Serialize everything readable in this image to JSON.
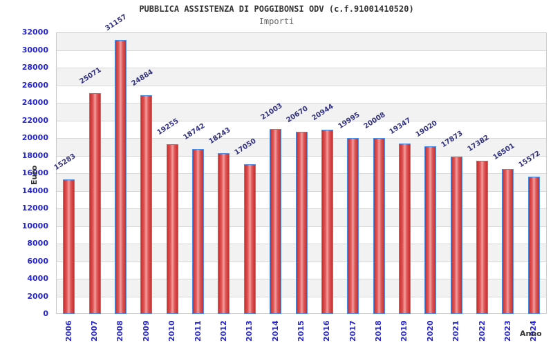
{
  "chart_data": {
    "type": "bar",
    "title": "PUBBLICA ASSISTENZA DI POGGIBONSI ODV (c.f.91001410520)",
    "subtitle": "Importi",
    "xlabel": "Anno",
    "ylabel": "Euro",
    "categories": [
      "2006",
      "2007",
      "2008",
      "2009",
      "2010",
      "2011",
      "2012",
      "2013",
      "2014",
      "2015",
      "2016",
      "2017",
      "2018",
      "2019",
      "2020",
      "2021",
      "2022",
      "2023",
      "2024"
    ],
    "values": [
      15283,
      25071,
      31157,
      24884,
      19255,
      18742,
      18243,
      17050,
      21003,
      20670,
      20944,
      19995,
      20008,
      19347,
      19020,
      17873,
      17382,
      16501,
      15572
    ],
    "ylim": [
      0,
      32000
    ],
    "ytick_step": 2000,
    "grid": true,
    "legend": false,
    "bar_value_labels_rotated": true,
    "colors": {
      "bar_fill_dark": "#c43030",
      "bar_fill_mid": "#e05555",
      "bar_fill_light": "#f0a0a0",
      "bar_border": "#4a8ee8",
      "tick_label": "#2626cc",
      "value_label": "#333380",
      "band_gray": "#f2f2f2",
      "band_white": "#ffffff",
      "gridline": "#d8d8d8",
      "plot_border": "#c9c9c9",
      "title": "#333333",
      "subtitle": "#666666",
      "axis_label": "#333333"
    }
  }
}
